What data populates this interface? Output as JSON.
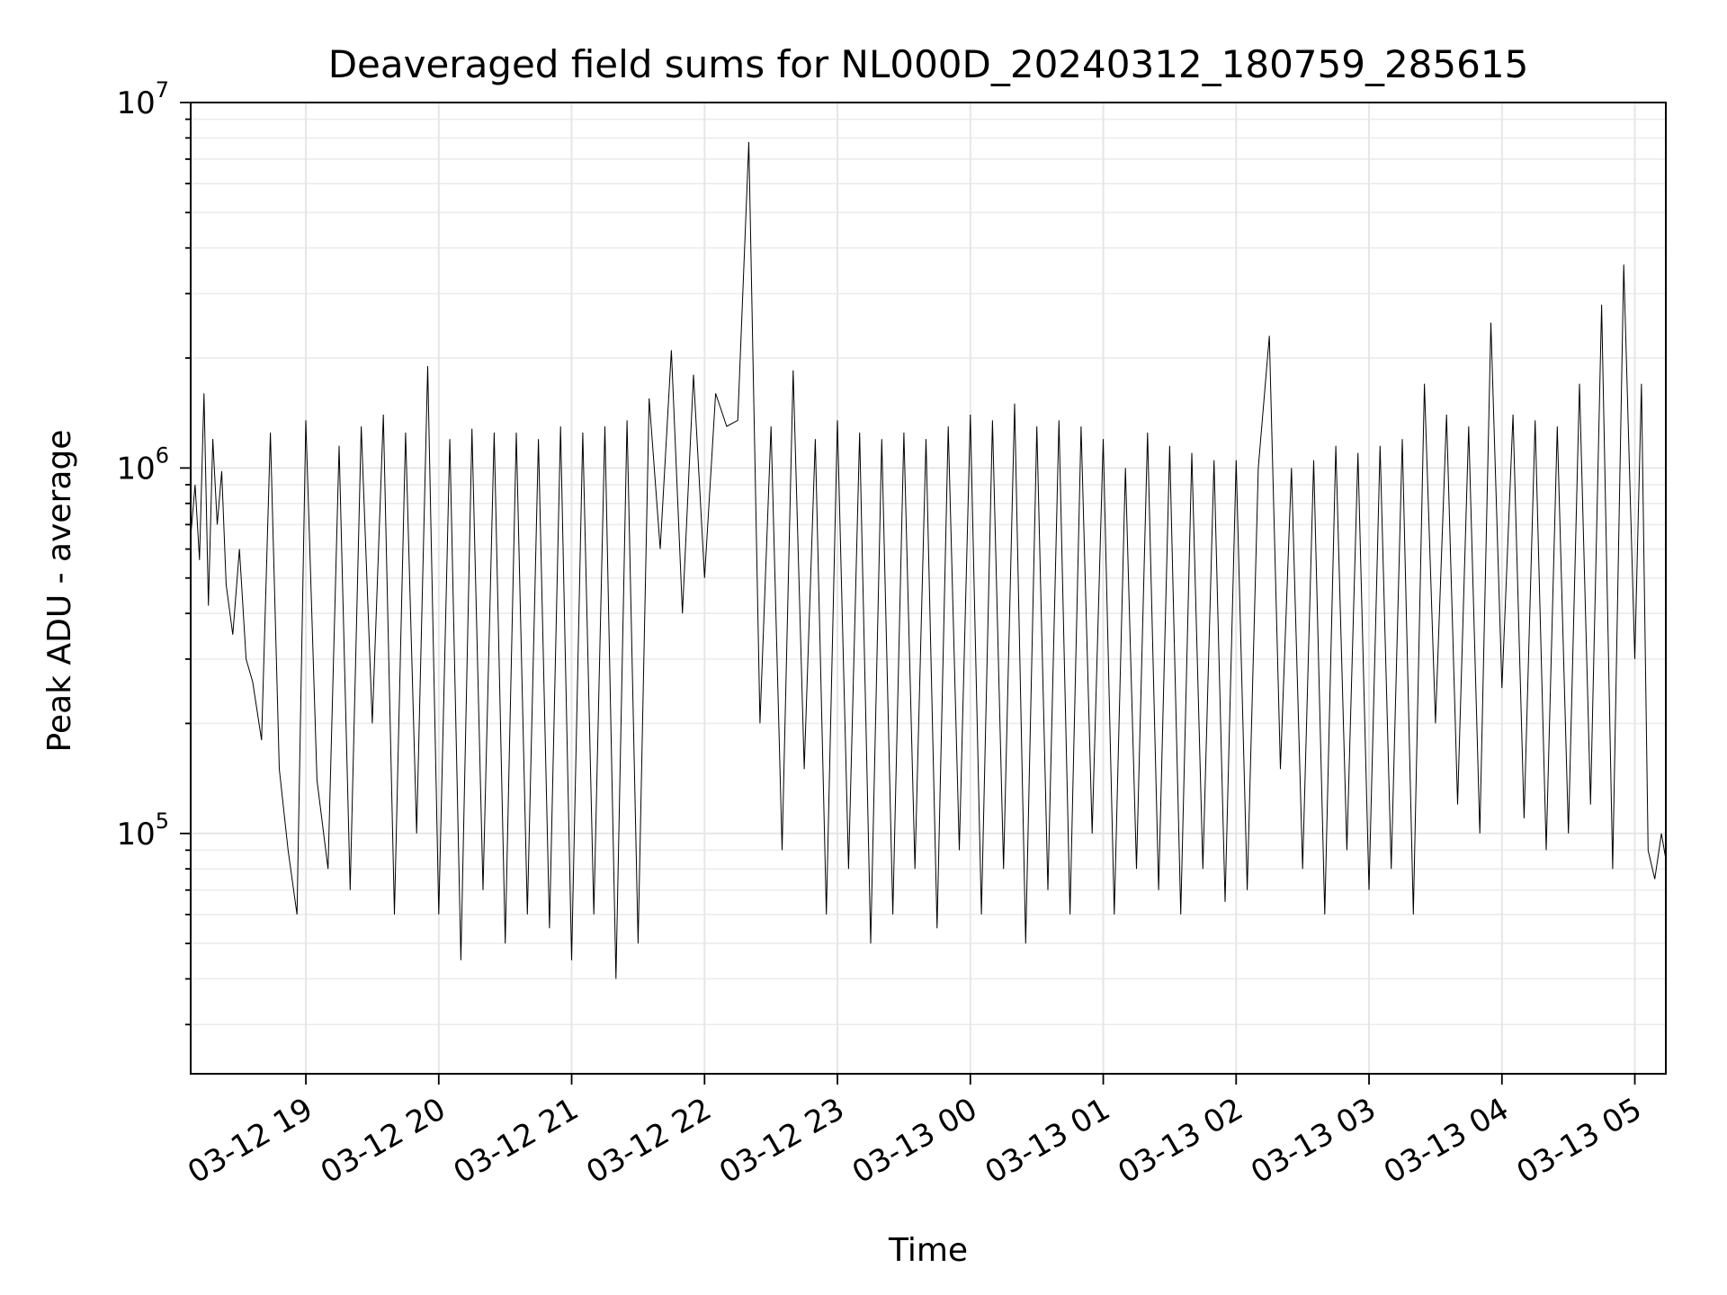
{
  "chart_data": {
    "type": "line",
    "title": "Deaveraged field sums for NL000D_20240312_180759_285615",
    "xlabel": "Time",
    "ylabel": "Peak ADU - average",
    "yscale": "log",
    "ylim": [
      22000,
      10000000
    ],
    "xlim": [
      "2024-03-12 18:08",
      "2024-03-13 05:14"
    ],
    "grid": true,
    "x_ticks": [
      {
        "t": "2024-03-12 19:00",
        "label": "03-12 19"
      },
      {
        "t": "2024-03-12 20:00",
        "label": "03-12 20"
      },
      {
        "t": "2024-03-12 21:00",
        "label": "03-12 21"
      },
      {
        "t": "2024-03-12 22:00",
        "label": "03-12 22"
      },
      {
        "t": "2024-03-12 23:00",
        "label": "03-12 23"
      },
      {
        "t": "2024-03-13 00:00",
        "label": "03-13 00"
      },
      {
        "t": "2024-03-13 01:00",
        "label": "03-13 01"
      },
      {
        "t": "2024-03-13 02:00",
        "label": "03-13 02"
      },
      {
        "t": "2024-03-13 03:00",
        "label": "03-13 03"
      },
      {
        "t": "2024-03-13 04:00",
        "label": "03-13 04"
      },
      {
        "t": "2024-03-13 05:00",
        "label": "03-13 05"
      }
    ],
    "y_ticks": [
      {
        "value": 100000,
        "base": "10",
        "exp": "5"
      },
      {
        "value": 1000000,
        "base": "10",
        "exp": "6"
      },
      {
        "value": 10000000,
        "base": "10",
        "exp": "7"
      }
    ],
    "series": [
      {
        "color": "#000000",
        "x": [
          "2024-03-12 18:08",
          "2024-03-12 18:10",
          "2024-03-12 18:12",
          "2024-03-12 18:14",
          "2024-03-12 18:16",
          "2024-03-12 18:18",
          "2024-03-12 18:20",
          "2024-03-12 18:22",
          "2024-03-12 18:24",
          "2024-03-12 18:27",
          "2024-03-12 18:30",
          "2024-03-12 18:33",
          "2024-03-12 18:36",
          "2024-03-12 18:40",
          "2024-03-12 18:44",
          "2024-03-12 18:48",
          "2024-03-12 18:52",
          "2024-03-12 18:56",
          "2024-03-12 19:00",
          "2024-03-12 19:05",
          "2024-03-12 19:10",
          "2024-03-12 19:15",
          "2024-03-12 19:20",
          "2024-03-12 19:25",
          "2024-03-12 19:30",
          "2024-03-12 19:35",
          "2024-03-12 19:40",
          "2024-03-12 19:45",
          "2024-03-12 19:50",
          "2024-03-12 19:55",
          "2024-03-12 20:00",
          "2024-03-12 20:05",
          "2024-03-12 20:10",
          "2024-03-12 20:15",
          "2024-03-12 20:20",
          "2024-03-12 20:25",
          "2024-03-12 20:30",
          "2024-03-12 20:35",
          "2024-03-12 20:40",
          "2024-03-12 20:45",
          "2024-03-12 20:50",
          "2024-03-12 20:55",
          "2024-03-12 21:00",
          "2024-03-12 21:05",
          "2024-03-12 21:10",
          "2024-03-12 21:15",
          "2024-03-12 21:20",
          "2024-03-12 21:25",
          "2024-03-12 21:30",
          "2024-03-12 21:35",
          "2024-03-12 21:40",
          "2024-03-12 21:45",
          "2024-03-12 21:50",
          "2024-03-12 21:55",
          "2024-03-12 22:00",
          "2024-03-12 22:05",
          "2024-03-12 22:10",
          "2024-03-12 22:15",
          "2024-03-12 22:20",
          "2024-03-12 22:25",
          "2024-03-12 22:30",
          "2024-03-12 22:35",
          "2024-03-12 22:40",
          "2024-03-12 22:45",
          "2024-03-12 22:50",
          "2024-03-12 22:55",
          "2024-03-12 23:00",
          "2024-03-12 23:05",
          "2024-03-12 23:10",
          "2024-03-12 23:15",
          "2024-03-12 23:20",
          "2024-03-12 23:25",
          "2024-03-12 23:30",
          "2024-03-12 23:35",
          "2024-03-12 23:40",
          "2024-03-12 23:45",
          "2024-03-12 23:50",
          "2024-03-12 23:55",
          "2024-03-13 00:00",
          "2024-03-13 00:05",
          "2024-03-13 00:10",
          "2024-03-13 00:15",
          "2024-03-13 00:20",
          "2024-03-13 00:25",
          "2024-03-13 00:30",
          "2024-03-13 00:35",
          "2024-03-13 00:40",
          "2024-03-13 00:45",
          "2024-03-13 00:50",
          "2024-03-13 00:55",
          "2024-03-13 01:00",
          "2024-03-13 01:05",
          "2024-03-13 01:10",
          "2024-03-13 01:15",
          "2024-03-13 01:20",
          "2024-03-13 01:25",
          "2024-03-13 01:30",
          "2024-03-13 01:35",
          "2024-03-13 01:40",
          "2024-03-13 01:45",
          "2024-03-13 01:50",
          "2024-03-13 01:55",
          "2024-03-13 02:00",
          "2024-03-13 02:05",
          "2024-03-13 02:10",
          "2024-03-13 02:15",
          "2024-03-13 02:20",
          "2024-03-13 02:25",
          "2024-03-13 02:30",
          "2024-03-13 02:35",
          "2024-03-13 02:40",
          "2024-03-13 02:45",
          "2024-03-13 02:50",
          "2024-03-13 02:55",
          "2024-03-13 03:00",
          "2024-03-13 03:05",
          "2024-03-13 03:10",
          "2024-03-13 03:15",
          "2024-03-13 03:20",
          "2024-03-13 03:25",
          "2024-03-13 03:30",
          "2024-03-13 03:35",
          "2024-03-13 03:40",
          "2024-03-13 03:45",
          "2024-03-13 03:50",
          "2024-03-13 03:55",
          "2024-03-13 04:00",
          "2024-03-13 04:05",
          "2024-03-13 04:10",
          "2024-03-13 04:15",
          "2024-03-13 04:20",
          "2024-03-13 04:25",
          "2024-03-13 04:30",
          "2024-03-13 04:35",
          "2024-03-13 04:40",
          "2024-03-13 04:45",
          "2024-03-13 04:50",
          "2024-03-13 04:55",
          "2024-03-13 05:00",
          "2024-03-13 05:03",
          "2024-03-13 05:06",
          "2024-03-13 05:09",
          "2024-03-13 05:12",
          "2024-03-13 05:14"
        ],
        "y": [
          650000,
          900000,
          560000,
          1600000,
          420000,
          1200000,
          700000,
          980000,
          480000,
          350000,
          600000,
          300000,
          260000,
          180000,
          1250000,
          150000,
          90000,
          60000,
          1350000,
          140000,
          80000,
          1150000,
          70000,
          1300000,
          200000,
          1400000,
          60000,
          1250000,
          100000,
          1900000,
          60000,
          1200000,
          45000,
          1280000,
          70000,
          1250000,
          50000,
          1250000,
          60000,
          1200000,
          55000,
          1300000,
          45000,
          1250000,
          60000,
          1300000,
          40000,
          1350000,
          50000,
          1550000,
          600000,
          2100000,
          400000,
          1800000,
          500000,
          1600000,
          1300000,
          1350000,
          7800000,
          200000,
          1300000,
          90000,
          1850000,
          150000,
          1200000,
          60000,
          1350000,
          80000,
          1250000,
          50000,
          1200000,
          60000,
          1250000,
          80000,
          1200000,
          55000,
          1300000,
          90000,
          1400000,
          60000,
          1350000,
          80000,
          1500000,
          50000,
          1300000,
          70000,
          1350000,
          60000,
          1300000,
          100000,
          1200000,
          60000,
          1000000,
          80000,
          1250000,
          70000,
          1150000,
          60000,
          1100000,
          80000,
          1050000,
          65000,
          1050000,
          70000,
          1000000,
          2300000,
          150000,
          1000000,
          80000,
          1050000,
          60000,
          1150000,
          90000,
          1100000,
          70000,
          1150000,
          80000,
          1200000,
          60000,
          1700000,
          200000,
          1400000,
          120000,
          1300000,
          100000,
          2500000,
          250000,
          1400000,
          110000,
          1350000,
          90000,
          1300000,
          100000,
          1700000,
          120000,
          2800000,
          80000,
          3600000,
          300000,
          1700000,
          90000,
          75000,
          100000,
          85000
        ]
      }
    ]
  }
}
